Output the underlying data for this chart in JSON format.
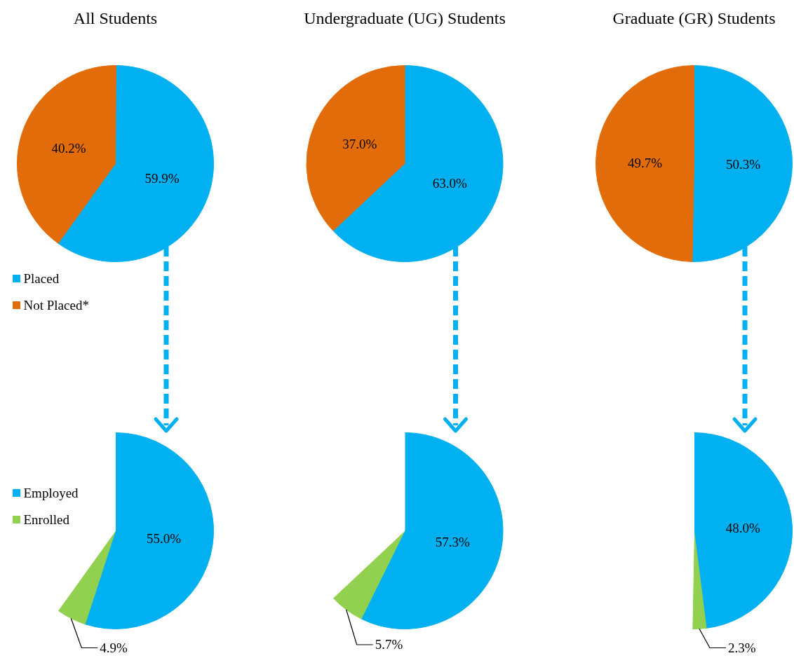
{
  "chart_data": [
    {
      "type": "pie",
      "title": "All Students",
      "categories": [
        "Placed",
        "Not Placed*"
      ],
      "values": [
        59.9,
        40.2
      ],
      "colors": [
        "#00b0f0",
        "#e36c0a"
      ],
      "value_labels": [
        "59.9%",
        "40.2%"
      ],
      "legend": "bottom left"
    },
    {
      "type": "pie",
      "title": "Undergraduate (UG) Students",
      "categories": [
        null,
        null
      ],
      "values": [
        63.0,
        37.0
      ],
      "colors": [
        "#00b0f0",
        "#e36c0a"
      ],
      "value_labels": [
        "63.0%",
        "37.0%"
      ]
    },
    {
      "type": "pie",
      "title": "Graduate (GR) Students",
      "categories": [
        null,
        null
      ],
      "values": [
        50.3,
        49.7
      ],
      "colors": [
        "#00b0f0",
        "#e36c0a"
      ],
      "value_labels": [
        "50.3%",
        "49.7%"
      ]
    },
    {
      "type": "pie",
      "categories": [
        "Employed",
        "Enrolled",
        null
      ],
      "values": [
        55.0,
        4.9,
        40.1
      ],
      "colors": [
        "#00b0f0",
        "#92d050",
        "#ffffff"
      ],
      "value_labels": [
        "55.0%",
        "4.9%",
        null
      ],
      "legend": "left"
    },
    {
      "type": "pie",
      "categories": [
        null,
        null,
        null
      ],
      "values": [
        57.3,
        5.7,
        37.0
      ],
      "colors": [
        "#00b0f0",
        "#92d050",
        "#ffffff"
      ],
      "value_labels": [
        "57.3%",
        "5.7%",
        null
      ]
    },
    {
      "type": "pie",
      "categories": [
        null,
        null,
        null
      ],
      "values": [
        48.0,
        2.3,
        49.7
      ],
      "colors": [
        "#00b0f0",
        "#92d050",
        "#ffffff"
      ],
      "value_labels": [
        "48.0%",
        "2.3%",
        null
      ]
    }
  ]
}
